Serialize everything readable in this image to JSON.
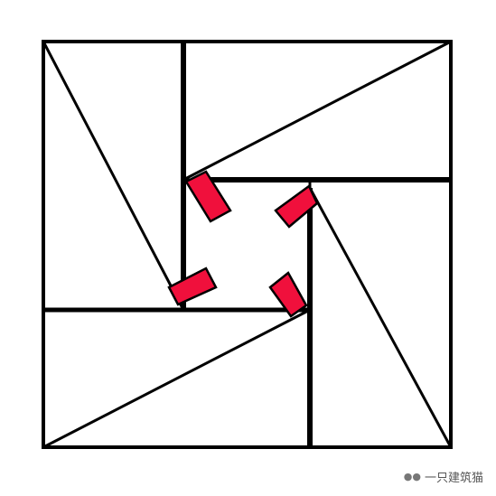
{
  "diagram": {
    "description_free": true,
    "colors": {
      "stroke": "#000000",
      "background": "#ffffff",
      "accent": "#f0103c"
    }
  },
  "watermark": {
    "icon": "wechat-icon",
    "text": "一只建筑猫"
  }
}
